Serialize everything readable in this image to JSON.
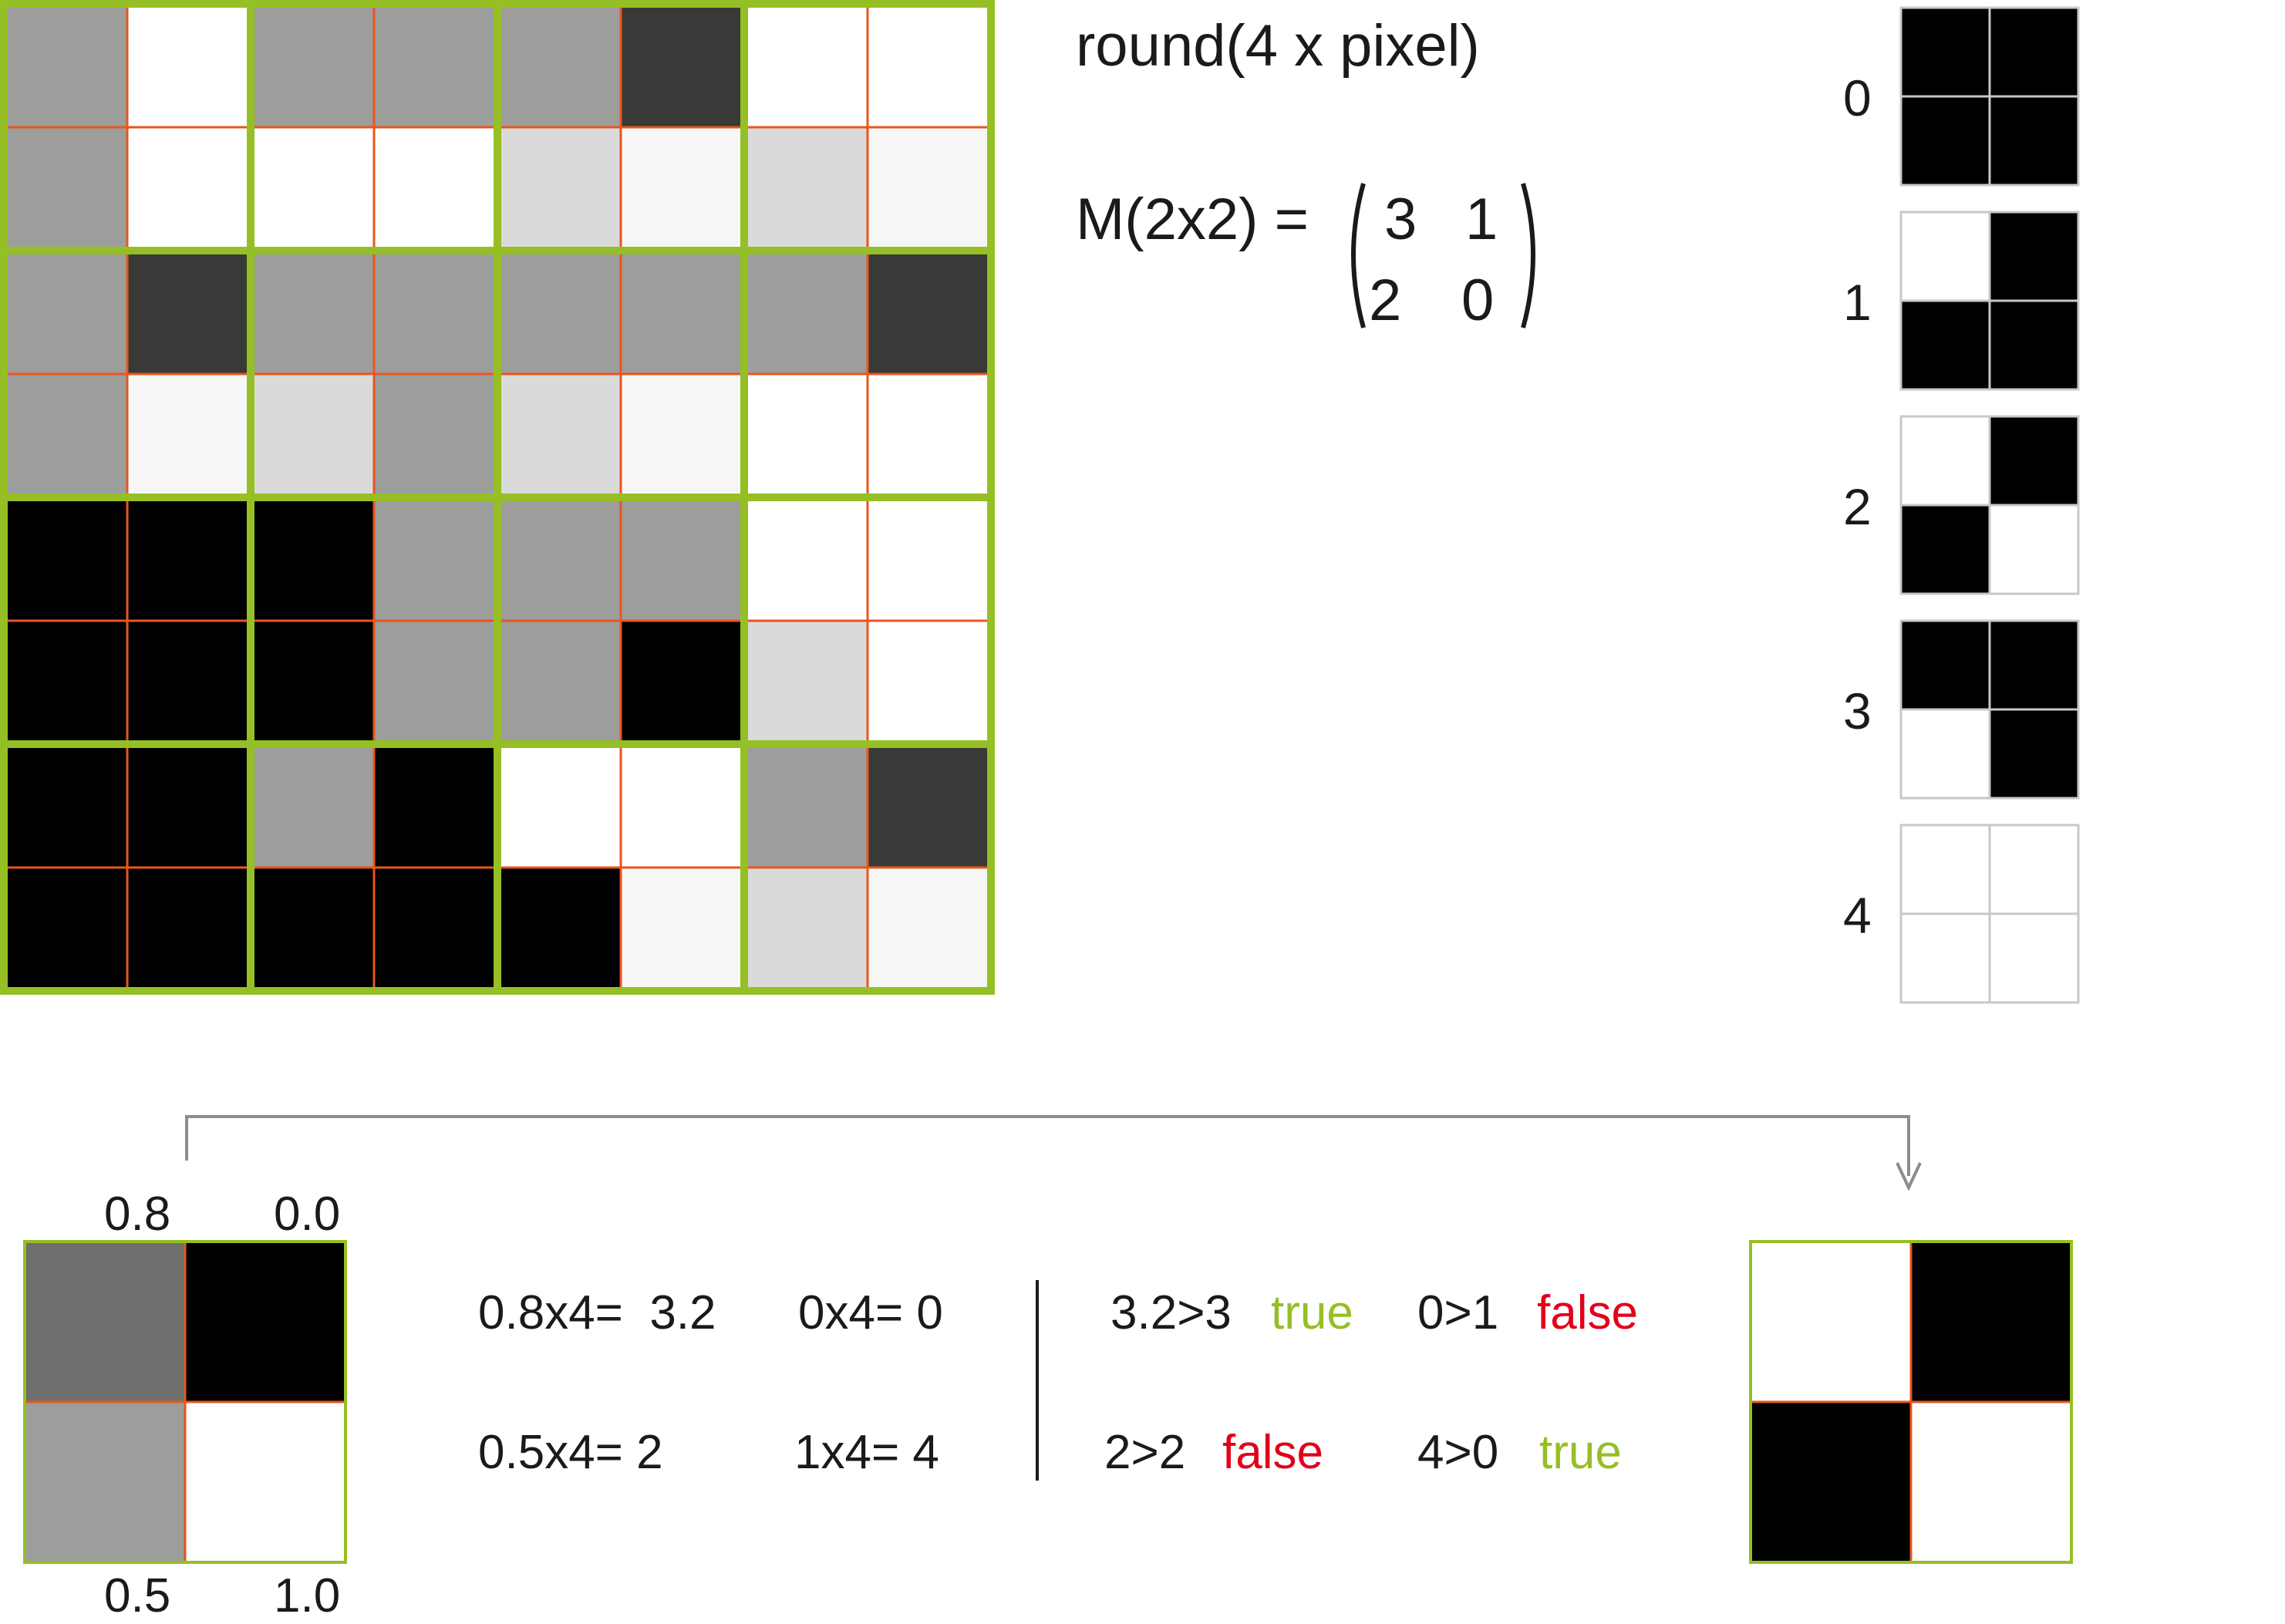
{
  "colors": {
    "green": "#95BF25",
    "orange": "#E8561E",
    "grid_gray": "#C8C8C8",
    "true_color": "#95BF25",
    "false_color": "#E2001A",
    "arrow_gray": "#8C8C8C",
    "levels": {
      "K": "#000000",
      "D": "#393937",
      "G": "#9D9D9C",
      "L": "#DADADA",
      "F": "#F6F6F6",
      "W": "#FFFFFF",
      "M": "#6F6F6E"
    }
  },
  "image_grid": {
    "rows": [
      [
        "G",
        "W",
        "G",
        "G",
        "G",
        "D",
        "W",
        "W"
      ],
      [
        "G",
        "W",
        "W",
        "W",
        "L",
        "F",
        "L",
        "F"
      ],
      [
        "G",
        "D",
        "G",
        "G",
        "G",
        "G",
        "G",
        "D"
      ],
      [
        "G",
        "F",
        "L",
        "G",
        "L",
        "F",
        "W",
        "W"
      ],
      [
        "K",
        "K",
        "K",
        "G",
        "G",
        "G",
        "W",
        "W"
      ],
      [
        "K",
        "K",
        "K",
        "G",
        "G",
        "K",
        "L",
        "W"
      ],
      [
        "K",
        "K",
        "G",
        "K",
        "W",
        "W",
        "G",
        "D"
      ],
      [
        "K",
        "K",
        "K",
        "K",
        "K",
        "F",
        "L",
        "F"
      ]
    ]
  },
  "formula": {
    "round_text": "round(4 x pixel)",
    "matrix_label": "M(2x2) =",
    "matrix": [
      [
        "3",
        "1"
      ],
      [
        "2",
        "0"
      ]
    ]
  },
  "patterns": [
    {
      "label": "0",
      "cells": [
        "K",
        "K",
        "K",
        "K"
      ]
    },
    {
      "label": "1",
      "cells": [
        "W",
        "K",
        "K",
        "K"
      ]
    },
    {
      "label": "2",
      "cells": [
        "W",
        "K",
        "K",
        "W"
      ]
    },
    {
      "label": "3",
      "cells": [
        "K",
        "K",
        "W",
        "K"
      ]
    },
    {
      "label": "4",
      "cells": [
        "W",
        "W",
        "W",
        "W"
      ]
    }
  ],
  "example": {
    "input_values": {
      "tl": "0.8",
      "tr": "0.0",
      "bl": "0.5",
      "br": "1.0"
    },
    "input_cells": [
      "M",
      "K",
      "G",
      "W"
    ],
    "calc": {
      "r1a": "0.8x4=  3.2",
      "r1b": "0x4= 0",
      "r2a": "0.5x4= 2",
      "r2b": "1x4= 4"
    },
    "compare": {
      "c1": {
        "expr": "3.2>3",
        "result": "true"
      },
      "c2": {
        "expr": "0>1",
        "result": "false"
      },
      "c3": {
        "expr": "2>2",
        "result": "false"
      },
      "c4": {
        "expr": "4>0",
        "result": "true"
      }
    },
    "output_cells": [
      "W",
      "K",
      "K",
      "W"
    ]
  }
}
